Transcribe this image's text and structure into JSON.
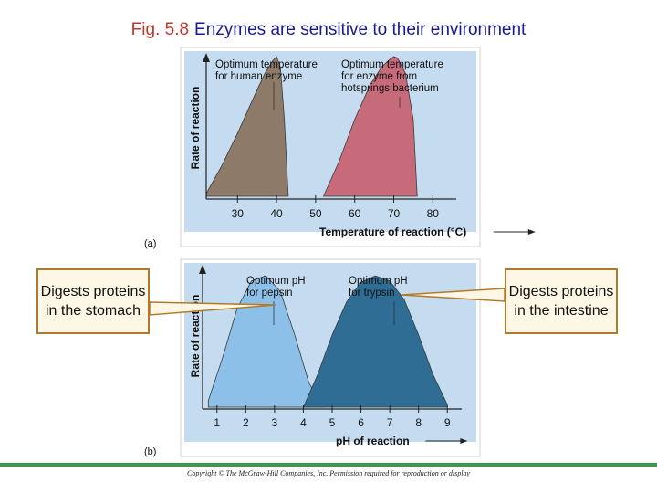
{
  "slide": {
    "fig_number": "Fig. 5.8",
    "title": "Enzymes are sensitive to their environment",
    "callout_left": "Digests proteins in the stomach",
    "callout_right": "Digests proteins in the intestine",
    "copyright": "Copyright © The McGraw-Hill Companies, Inc. Permission required for reproduction or display"
  },
  "colors": {
    "panel_bg": "#c5dcf0",
    "human": "#8e7a68",
    "bacterium": "#c76a79",
    "pepsin": "#8cc0e8",
    "trypsin": "#2f6d95",
    "accent": "#c0392b"
  },
  "chart_data": [
    {
      "type": "area",
      "panel_label": "(a)",
      "xlabel": "Temperature of reaction (°C)",
      "ylabel": "Rate of reaction",
      "xlim": [
        22,
        86
      ],
      "ylim": [
        0,
        1
      ],
      "x_ticks": [
        30,
        40,
        50,
        60,
        70,
        80
      ],
      "grid": false,
      "series": [
        {
          "annotation": "Optimum temperature for human enzyme",
          "color": "#8e7a68",
          "x": [
            22,
            26,
            30,
            34,
            37,
            39,
            40,
            41,
            42,
            43
          ],
          "y": [
            0.02,
            0.22,
            0.45,
            0.7,
            0.88,
            0.97,
            1.0,
            0.92,
            0.55,
            0.0
          ]
        },
        {
          "annotation": "Optimum temperature for enzyme from hotsprings bacterium",
          "color": "#c76a79",
          "x": [
            52,
            56,
            60,
            64,
            67,
            69,
            70,
            71,
            73,
            75,
            76
          ],
          "y": [
            0.0,
            0.25,
            0.55,
            0.8,
            0.93,
            0.98,
            1.0,
            0.99,
            0.88,
            0.55,
            0.0
          ]
        }
      ]
    },
    {
      "type": "area",
      "panel_label": "(b)",
      "xlabel": "pH of reaction",
      "ylabel": "Rate of reaction",
      "xlim": [
        0.5,
        9.5
      ],
      "ylim": [
        0,
        1
      ],
      "x_ticks": [
        1,
        2,
        3,
        4,
        5,
        6,
        7,
        8,
        9
      ],
      "grid": false,
      "series": [
        {
          "annotation": "Optimum pH for pepsin",
          "color": "#8cc0e8",
          "x": [
            0.7,
            1.2,
            1.7,
            2.2,
            2.7,
            3.2,
            3.7,
            4.2,
            4.7
          ],
          "y": [
            0.05,
            0.38,
            0.75,
            0.96,
            1.0,
            0.88,
            0.55,
            0.18,
            0.0
          ]
        },
        {
          "annotation": "Optimum pH for trypsin",
          "color": "#2f6d95",
          "x": [
            4.0,
            4.5,
            5.0,
            5.5,
            6.0,
            6.5,
            7.0,
            7.5,
            8.0,
            8.5,
            9.0
          ],
          "y": [
            0.0,
            0.25,
            0.55,
            0.8,
            0.95,
            1.0,
            0.96,
            0.82,
            0.55,
            0.25,
            0.02
          ]
        }
      ]
    }
  ]
}
